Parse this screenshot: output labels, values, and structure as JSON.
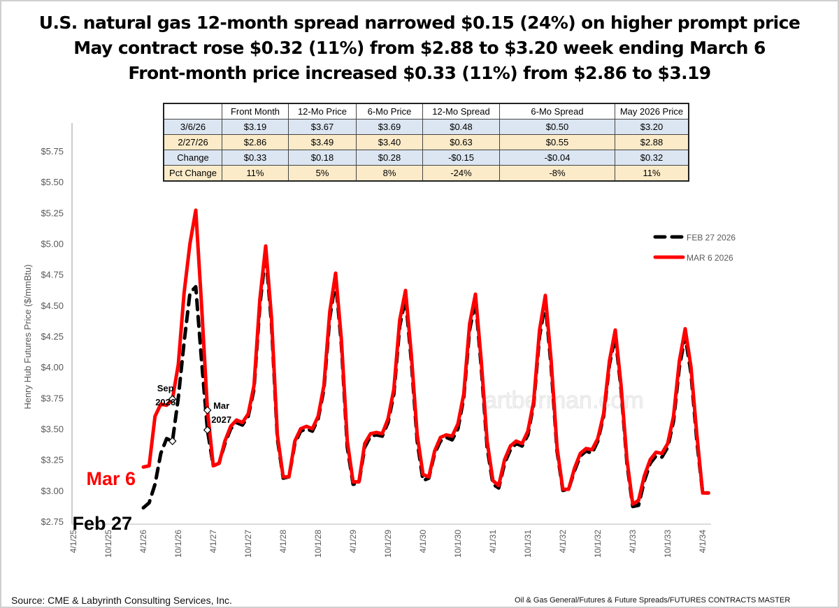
{
  "titles": [
    "U.S. natural gas 12-month spread narrowed $0.15 (24%) on higher prompt price",
    "May contract rose $0.32 (11%) from $2.88 to $3.20 week ending March 6",
    "Front-month price increased $0.33 (11%) from $2.86 to $3.19"
  ],
  "table": {
    "headers": [
      "",
      "Front Month",
      "12-Mo Price",
      "6-Mo Price",
      "12-Mo Spread",
      "6-Mo Spread",
      "May 2026 Price"
    ],
    "rows": [
      [
        "3/6/26",
        "$3.19",
        "$3.67",
        "$3.69",
        "$0.48",
        "$0.50",
        "$3.20"
      ],
      [
        "2/27/26",
        "$2.86",
        "$3.49",
        "$3.40",
        "$0.63",
        "$0.55",
        "$2.88"
      ],
      [
        "Change",
        "$0.33",
        "$0.18",
        "$0.28",
        "-$0.15",
        "-$0.04",
        "$0.32"
      ],
      [
        "Pct Change",
        "11%",
        "5%",
        "8%",
        "-24%",
        "-8%",
        "11%"
      ]
    ]
  },
  "chart_data": {
    "type": "line",
    "ylabel": "Henry Hub Futures Price ($/mmBtu)",
    "ylim": [
      2.75,
      5.75
    ],
    "y_ticks": [
      "$2.75",
      "$3.00",
      "$3.25",
      "$3.50",
      "$3.75",
      "$4.00",
      "$4.25",
      "$4.50",
      "$4.75",
      "$5.00",
      "$5.25",
      "$5.50",
      "$5.75"
    ],
    "x_ticks": [
      "4/1/25",
      "10/1/25",
      "4/1/26",
      "10/1/26",
      "4/1/27",
      "10/1/27",
      "4/1/28",
      "10/1/28",
      "4/1/29",
      "10/1/29",
      "4/1/30",
      "10/1/30",
      "4/1/31",
      "10/1/31",
      "4/1/32",
      "10/1/32",
      "4/1/33",
      "10/1/33",
      "4/1/34"
    ],
    "xlim": [
      "2025-04",
      "2034-06"
    ],
    "grid": false,
    "legend_position": "top-right",
    "x": [
      "2026-04",
      "2026-05",
      "2026-06",
      "2026-07",
      "2026-08",
      "2026-09",
      "2026-10",
      "2026-11",
      "2026-12",
      "2027-01",
      "2027-02",
      "2027-03",
      "2027-04",
      "2027-05",
      "2027-06",
      "2027-07",
      "2027-08",
      "2027-09",
      "2027-10",
      "2027-11",
      "2027-12",
      "2028-01",
      "2028-02",
      "2028-03",
      "2028-04",
      "2028-05",
      "2028-06",
      "2028-07",
      "2028-08",
      "2028-09",
      "2028-10",
      "2028-11",
      "2028-12",
      "2029-01",
      "2029-02",
      "2029-03",
      "2029-04",
      "2029-05",
      "2029-06",
      "2029-07",
      "2029-08",
      "2029-09",
      "2029-10",
      "2029-11",
      "2029-12",
      "2030-01",
      "2030-02",
      "2030-03",
      "2030-04",
      "2030-05",
      "2030-06",
      "2030-07",
      "2030-08",
      "2030-09",
      "2030-10",
      "2030-11",
      "2030-12",
      "2031-01",
      "2031-02",
      "2031-03",
      "2031-04",
      "2031-05",
      "2031-06",
      "2031-07",
      "2031-08",
      "2031-09",
      "2031-10",
      "2031-11",
      "2031-12",
      "2032-01",
      "2032-02",
      "2032-03",
      "2032-04",
      "2032-05",
      "2032-06",
      "2032-07",
      "2032-08",
      "2032-09",
      "2032-10",
      "2032-11",
      "2032-12",
      "2033-01",
      "2033-02",
      "2033-03",
      "2033-04",
      "2033-05",
      "2033-06",
      "2033-07",
      "2033-08",
      "2033-09",
      "2033-10",
      "2033-11",
      "2033-12",
      "2034-01",
      "2034-02",
      "2034-03",
      "2034-04",
      "2034-05"
    ],
    "series": [
      {
        "name": "FEB 27 2026",
        "color": "#000000",
        "style": "dashed",
        "values": [
          2.86,
          2.9,
          3.05,
          3.3,
          3.42,
          3.4,
          3.75,
          4.2,
          4.6,
          4.65,
          4.05,
          3.49,
          3.2,
          3.22,
          3.38,
          3.5,
          3.55,
          3.53,
          3.6,
          3.82,
          4.5,
          4.92,
          4.35,
          3.42,
          3.1,
          3.11,
          3.38,
          3.48,
          3.5,
          3.48,
          3.58,
          3.82,
          4.4,
          4.7,
          4.18,
          3.35,
          3.05,
          3.06,
          3.35,
          3.44,
          3.45,
          3.44,
          3.55,
          3.78,
          4.33,
          4.56,
          4.05,
          3.4,
          3.08,
          3.1,
          3.3,
          3.4,
          3.43,
          3.41,
          3.5,
          3.75,
          4.3,
          4.54,
          4.0,
          3.35,
          3.05,
          3.02,
          3.22,
          3.33,
          3.38,
          3.36,
          3.45,
          3.7,
          4.25,
          4.52,
          4.0,
          3.32,
          3.0,
          3.01,
          3.16,
          3.28,
          3.32,
          3.3,
          3.4,
          3.6,
          4.02,
          4.25,
          3.82,
          3.22,
          2.87,
          2.88,
          3.08,
          3.22,
          3.28,
          3.27,
          3.35,
          3.56,
          4.0,
          4.25,
          3.95,
          3.4,
          2.98,
          2.98
        ]
      },
      {
        "name": "MAR 6 2026",
        "color": "#ff0000",
        "style": "solid",
        "values": [
          3.19,
          3.2,
          3.6,
          3.7,
          3.69,
          3.74,
          4.02,
          4.6,
          5.0,
          5.27,
          4.5,
          3.65,
          3.2,
          3.22,
          3.4,
          3.52,
          3.57,
          3.55,
          3.62,
          3.85,
          4.55,
          4.98,
          4.4,
          3.45,
          3.11,
          3.11,
          3.4,
          3.5,
          3.52,
          3.5,
          3.6,
          3.85,
          4.45,
          4.76,
          4.22,
          3.4,
          3.07,
          3.07,
          3.38,
          3.46,
          3.47,
          3.46,
          3.58,
          3.82,
          4.38,
          4.62,
          4.1,
          3.45,
          3.13,
          3.11,
          3.32,
          3.43,
          3.45,
          3.44,
          3.54,
          3.78,
          4.35,
          4.59,
          4.05,
          3.4,
          3.08,
          3.04,
          3.25,
          3.36,
          3.4,
          3.38,
          3.48,
          3.72,
          4.3,
          4.58,
          4.05,
          3.35,
          3.01,
          3.01,
          3.18,
          3.3,
          3.34,
          3.33,
          3.42,
          3.62,
          4.05,
          4.3,
          3.85,
          3.25,
          2.89,
          2.92,
          3.12,
          3.25,
          3.31,
          3.3,
          3.38,
          3.6,
          4.05,
          4.31,
          4.0,
          3.45,
          2.98,
          2.98
        ]
      }
    ],
    "annotations": [
      {
        "text_line1": "Sep",
        "text_line2": "2026",
        "x": "2026-09"
      },
      {
        "text_line1": "Mar",
        "text_line2": "2027",
        "x": "2027-03"
      }
    ],
    "series_labels": {
      "current": "Mar 6",
      "previous": "Feb 27"
    },
    "watermark": "artberman.com"
  },
  "footer": {
    "source": "Source: CME & Labyrinth Consulting Services, Inc.",
    "path": "Oil & Gas General/Futures & Future Spreads/FUTURES CONTRACTS MASTER"
  }
}
